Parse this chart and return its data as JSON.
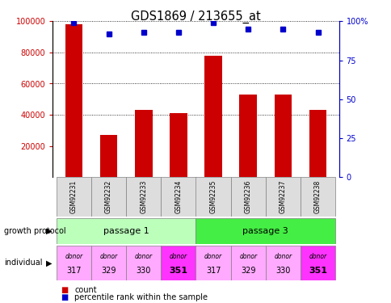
{
  "title": "GDS1869 / 213655_at",
  "samples": [
    "GSM92231",
    "GSM92232",
    "GSM92233",
    "GSM92234",
    "GSM92235",
    "GSM92236",
    "GSM92237",
    "GSM92238"
  ],
  "counts": [
    98000,
    27000,
    43000,
    41000,
    78000,
    53000,
    53000,
    43000
  ],
  "percentiles": [
    99,
    92,
    93,
    93,
    99,
    95,
    95,
    93
  ],
  "individual_labels": [
    "donor",
    "donor",
    "donor",
    "donor",
    "donor",
    "donor",
    "donor",
    "donor"
  ],
  "individual_nums": [
    "317",
    "329",
    "330",
    "351",
    "317",
    "329",
    "330",
    "351"
  ],
  "individual_highlight": [
    false,
    false,
    false,
    true,
    false,
    false,
    false,
    true
  ],
  "bar_color": "#cc0000",
  "dot_color": "#0000cc",
  "passage1_color": "#bbffbb",
  "passage3_color": "#44ee44",
  "donor_normal_color": "#ffaaff",
  "donor_highlight_color": "#ff33ff",
  "sample_bg_color": "#dddddd",
  "ylim_left": [
    0,
    100000
  ],
  "ylim_right": [
    0,
    100
  ],
  "yticks_left": [
    20000,
    40000,
    60000,
    80000,
    100000
  ],
  "yticks_right": [
    0,
    25,
    50,
    75,
    100
  ],
  "grid_values": [
    40000,
    60000,
    80000,
    100000
  ],
  "ylabel_left_color": "#cc0000",
  "ylabel_right_color": "#0000cc"
}
